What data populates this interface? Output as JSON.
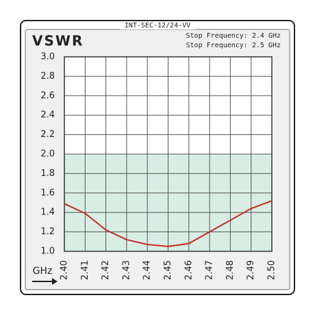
{
  "chart_data": {
    "type": "line",
    "header": "INT-SEC-12/24-VV",
    "title": "VSWR",
    "annotations": [
      "Stop Frequency: 2.4 GHz",
      "Stop Frequency: 2.5 GHz"
    ],
    "x_label": "GHz",
    "x": [
      2.4,
      2.41,
      2.42,
      2.43,
      2.44,
      2.45,
      2.46,
      2.47,
      2.48,
      2.49,
      2.5
    ],
    "series": [
      {
        "name": "VSWR",
        "color": "#c8281e",
        "values": [
          1.49,
          1.39,
          1.22,
          1.12,
          1.07,
          1.05,
          1.08,
          1.2,
          1.32,
          1.44,
          1.52
        ]
      }
    ],
    "xlim": [
      2.4,
      2.5
    ],
    "ylim": [
      1.0,
      3.0
    ],
    "xticks": [
      {
        "value": 2.4,
        "label": "2.40"
      },
      {
        "value": 2.41,
        "label": "2.41"
      },
      {
        "value": 2.42,
        "label": "2.42"
      },
      {
        "value": 2.43,
        "label": "2.43"
      },
      {
        "value": 2.44,
        "label": "2.44"
      },
      {
        "value": 2.45,
        "label": "2.45"
      },
      {
        "value": 2.46,
        "label": "2.46"
      },
      {
        "value": 2.47,
        "label": "2.47"
      },
      {
        "value": 2.48,
        "label": "2.48"
      },
      {
        "value": 2.49,
        "label": "2.49"
      },
      {
        "value": 2.5,
        "label": "2.50"
      }
    ],
    "yticks": [
      {
        "value": 1,
        "label": "1.0"
      },
      1.2,
      1.4,
      1.6,
      1.8,
      {
        "value": 2,
        "label": "2.0"
      },
      2.2,
      2.4,
      2.6,
      2.8,
      {
        "value": 3,
        "label": "3.0"
      }
    ],
    "shaded_range": [
      1.0,
      2.0
    ],
    "shaded_color": "#d8ede3",
    "grid": true
  }
}
